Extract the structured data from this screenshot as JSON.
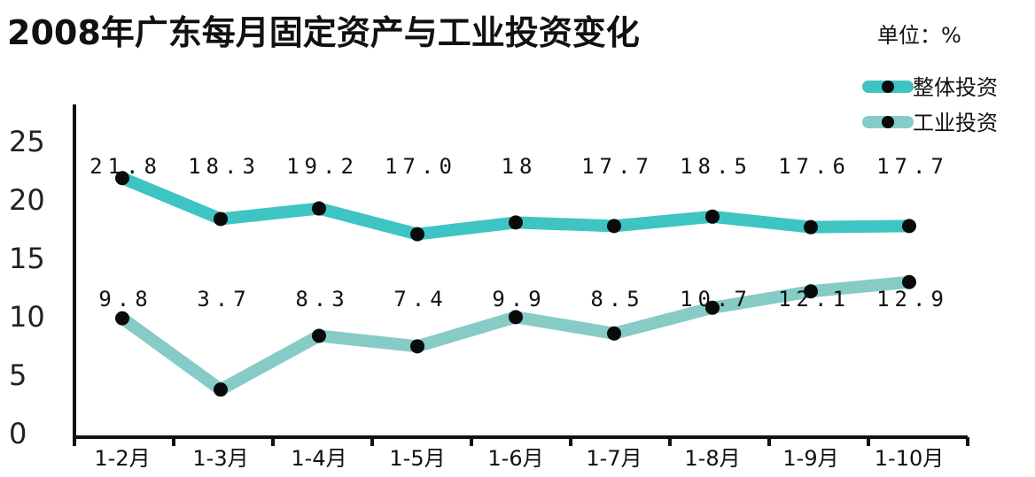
{
  "chart_data": {
    "type": "line",
    "title": "2008年广东每月固定资产与工业投资变化",
    "unit_label": "单位：%",
    "categories": [
      "1-2月",
      "1-3月",
      "1-4月",
      "1-5月",
      "1-6月",
      "1-7月",
      "1-8月",
      "1-9月",
      "1-10月"
    ],
    "y_ticks": [
      "25",
      "20",
      "15",
      "10",
      "5",
      "0"
    ],
    "ylim": [
      0,
      25
    ],
    "grid": false,
    "legend_position": "top-right",
    "series": [
      {
        "name": "整体投资",
        "color": "#3fc4c4",
        "values": [
          21.8,
          18.3,
          19.2,
          17.0,
          18,
          17.7,
          18.5,
          17.6,
          17.7
        ],
        "labels": [
          "21.8",
          "18.3",
          "19.2",
          "17.0",
          "18",
          "17.7",
          "18.5",
          "17.6",
          "17.7"
        ]
      },
      {
        "name": "工业投资",
        "color": "#86cbc6",
        "values": [
          9.8,
          3.7,
          8.3,
          7.4,
          9.9,
          8.5,
          10.7,
          12.1,
          12.9
        ],
        "labels": [
          "9.8",
          "3.7",
          "8.3",
          "7.4",
          "9.9",
          "8.5",
          "10.7",
          "12.1",
          "12.9"
        ]
      }
    ]
  }
}
